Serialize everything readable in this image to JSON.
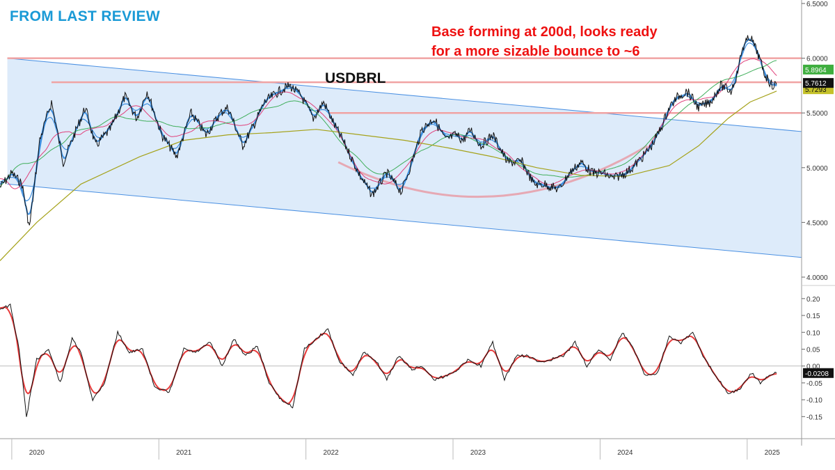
{
  "header": {
    "label": "FROM LAST REVIEW"
  },
  "annotation": {
    "line1": "Base forming at 200d, looks ready",
    "line2": "for a more sizable bounce to ~6"
  },
  "colors": {
    "price": "#111111",
    "ma_fast": "#3d8fe0",
    "ma_pink": "#e0407a",
    "ma_green": "#3fae5a",
    "ma_olive": "#a5a21a",
    "channel_fill": "#ddebfa",
    "channel_line": "#4a90e2",
    "levels": "#f0a3a3",
    "osc_line": "#111111",
    "osc_signal": "#e83a3a",
    "header": "#1a9ad6",
    "annotation": "#ee1111"
  },
  "chart_data": [
    {
      "type": "line",
      "symbol": "USDBRL",
      "x_ticks": [
        "2020",
        "2021",
        "2022",
        "2023",
        "2024",
        "2025"
      ],
      "y_ticks": [
        "6.5000",
        "6.0000",
        "5.5000",
        "5.0000",
        "4.5000",
        "4.0000"
      ],
      "ylim": [
        4.0,
        6.5
      ],
      "series": [
        {
          "role": "price",
          "x": [
            2019.75,
            2019.83,
            2019.9,
            2019.95,
            2020.02,
            2020.1,
            2020.18,
            2020.27,
            2020.33,
            2020.4,
            2020.5,
            2020.6,
            2020.68,
            2020.75,
            2020.85,
            2020.95,
            2021.05,
            2021.15,
            2021.25,
            2021.3,
            2021.4,
            2021.48,
            2021.55,
            2021.65,
            2021.72,
            2021.8,
            2021.88,
            2021.95,
            2022.02,
            2022.1,
            2022.2,
            2022.28,
            2022.38,
            2022.48,
            2022.55,
            2022.62,
            2022.7,
            2022.78,
            2022.85,
            2022.9,
            2022.95,
            2023.02,
            2023.1,
            2023.2,
            2023.3,
            2023.38,
            2023.45,
            2023.55,
            2023.62,
            2023.7,
            2023.78,
            2023.85,
            2023.92,
            2024.0,
            2024.05,
            2024.12,
            2024.18,
            2024.24,
            2024.3,
            2024.36,
            2024.42,
            2024.5,
            2024.58,
            2024.65,
            2024.72,
            2024.76,
            2024.8,
            2024.85,
            2024.9,
            2024.95,
            2025.0,
            2025.03
          ],
          "y": [
            4.82,
            4.95,
            4.85,
            4.45,
            5.25,
            5.6,
            5.05,
            5.35,
            5.55,
            5.2,
            5.35,
            5.65,
            5.45,
            5.7,
            5.3,
            5.1,
            5.5,
            5.3,
            5.5,
            5.55,
            5.2,
            5.4,
            5.6,
            5.7,
            5.75,
            5.65,
            5.45,
            5.6,
            5.4,
            5.2,
            4.92,
            4.75,
            4.95,
            4.78,
            5.05,
            5.35,
            5.45,
            5.25,
            5.3,
            5.25,
            5.35,
            5.2,
            5.3,
            5.05,
            5.05,
            4.85,
            4.85,
            4.8,
            4.95,
            5.05,
            4.95,
            4.95,
            4.9,
            4.95,
            5.0,
            5.1,
            5.2,
            5.35,
            5.55,
            5.65,
            5.7,
            5.55,
            5.6,
            5.75,
            5.7,
            5.85,
            6.1,
            6.2,
            6.05,
            5.85,
            5.75,
            5.76
          ]
        },
        {
          "role": "ma_200d",
          "x": [
            2019.75,
            2020.0,
            2020.3,
            2020.7,
            2021.0,
            2021.3,
            2021.6,
            2021.9,
            2022.2,
            2022.5,
            2022.8,
            2023.1,
            2023.4,
            2023.7,
            2024.0,
            2024.3,
            2024.5,
            2024.7,
            2024.85,
            2025.03
          ],
          "y": [
            4.15,
            4.5,
            4.85,
            5.1,
            5.25,
            5.3,
            5.32,
            5.35,
            5.3,
            5.25,
            5.18,
            5.1,
            5.0,
            4.93,
            4.92,
            5.02,
            5.2,
            5.45,
            5.6,
            5.7
          ]
        }
      ],
      "labels": {
        "last_price": "5.7612",
        "ma_upper": "5.8964",
        "ma_lower": "5.7293"
      },
      "levels": [
        6.0,
        5.78,
        5.5
      ],
      "channel": {
        "upper": [
          6.0,
          5.33
        ],
        "lower": [
          4.85,
          4.18
        ]
      }
    },
    {
      "type": "line",
      "y_ticks": [
        "0.20",
        "0.15",
        "0.10",
        "0.05",
        "0.00",
        "-0.05",
        "-0.10",
        "-0.15"
      ],
      "ylim": [
        -0.17,
        0.21
      ],
      "series": [
        {
          "role": "oscillator",
          "x": [
            2019.75,
            2019.82,
            2019.88,
            2019.93,
            2020.0,
            2020.08,
            2020.16,
            2020.24,
            2020.3,
            2020.38,
            2020.46,
            2020.55,
            2020.63,
            2020.72,
            2020.8,
            2020.9,
            2021.0,
            2021.08,
            2021.18,
            2021.26,
            2021.34,
            2021.42,
            2021.5,
            2021.58,
            2021.66,
            2021.74,
            2021.82,
            2021.9,
            2021.98,
            2022.05,
            2022.15,
            2022.22,
            2022.3,
            2022.38,
            2022.46,
            2022.55,
            2022.62,
            2022.7,
            2022.78,
            2022.86,
            2022.94,
            2023.02,
            2023.1,
            2023.18,
            2023.26,
            2023.34,
            2023.42,
            2023.5,
            2023.58,
            2023.66,
            2023.74,
            2023.82,
            2023.9,
            2023.98,
            2024.06,
            2024.14,
            2024.22,
            2024.3,
            2024.38,
            2024.46,
            2024.54,
            2024.62,
            2024.7,
            2024.78,
            2024.86,
            2024.92,
            2024.98,
            2025.03
          ],
          "y": [
            0.17,
            0.18,
            0.05,
            -0.15,
            0.02,
            0.05,
            -0.05,
            0.08,
            0.04,
            -0.1,
            -0.05,
            0.1,
            0.04,
            0.05,
            -0.06,
            -0.08,
            0.05,
            0.04,
            0.07,
            0.0,
            0.08,
            0.03,
            0.06,
            -0.05,
            -0.1,
            -0.12,
            0.05,
            0.08,
            0.11,
            0.02,
            -0.03,
            0.04,
            0.02,
            -0.04,
            0.03,
            -0.01,
            0.0,
            -0.04,
            -0.03,
            -0.01,
            0.02,
            0.0,
            0.07,
            -0.04,
            0.03,
            0.03,
            0.01,
            0.02,
            0.03,
            0.07,
            0.0,
            0.05,
            0.02,
            0.1,
            0.05,
            -0.03,
            -0.02,
            0.09,
            0.07,
            0.1,
            0.02,
            -0.03,
            -0.08,
            -0.07,
            -0.02,
            -0.05,
            -0.03,
            -0.02
          ]
        }
      ],
      "labels": {
        "last_value": "-0.0208"
      },
      "zero_line": 0.0
    }
  ]
}
